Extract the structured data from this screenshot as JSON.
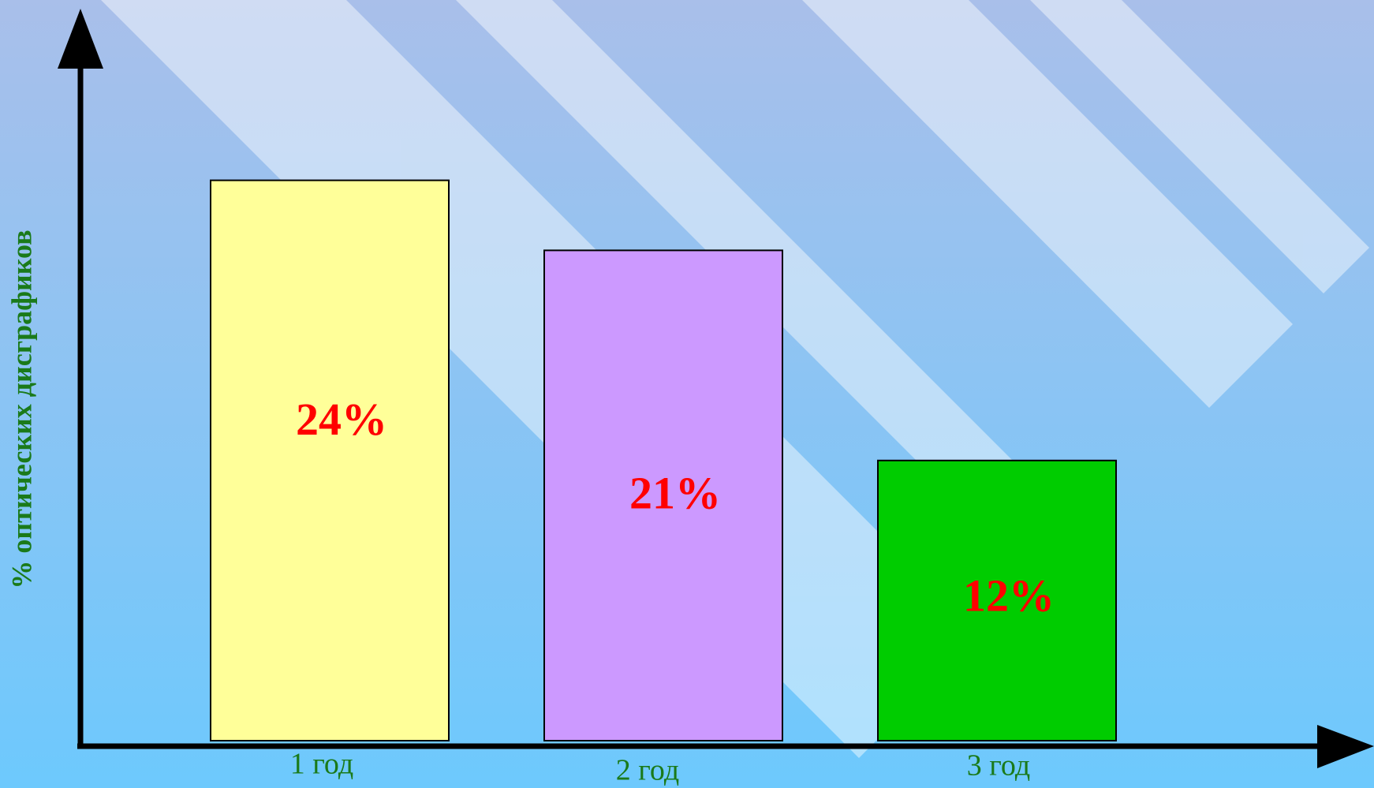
{
  "chart_data": {
    "type": "bar",
    "y_label": "% оптических дисграфиков",
    "categories": [
      "1 год",
      "2 год",
      "3 год"
    ],
    "values": [
      24,
      21,
      12
    ],
    "value_labels": [
      "24%",
      "21%",
      "12%"
    ],
    "colors": [
      "#ffff99",
      "#cc99ff",
      "#00cc00"
    ],
    "ylim": [
      0,
      30
    ]
  }
}
